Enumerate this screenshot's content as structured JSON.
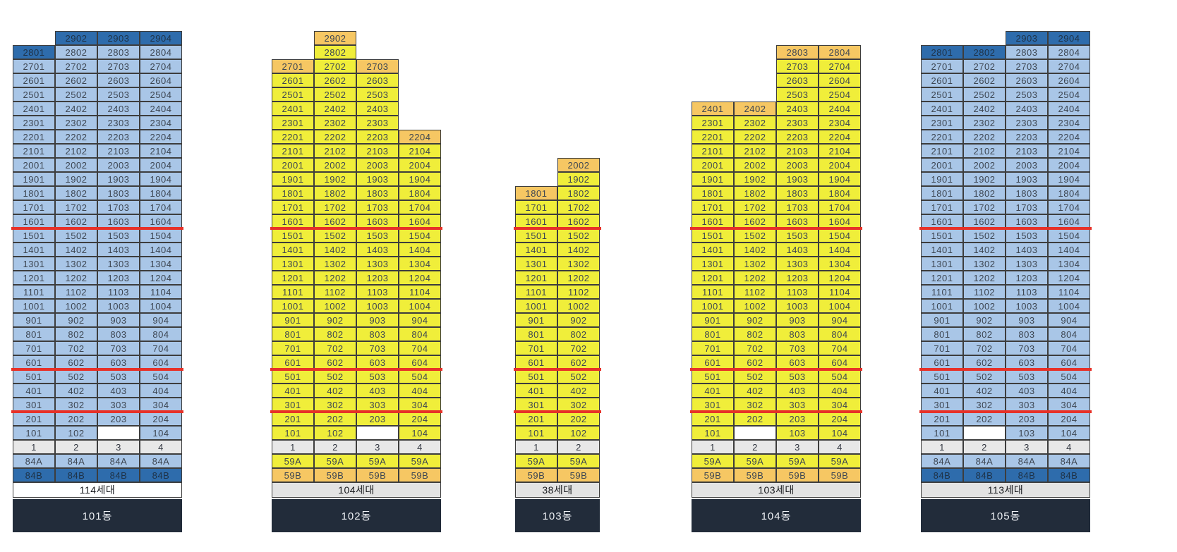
{
  "chart_title": "",
  "themes": {
    "blue": {
      "cell_bg": "#a9c6e7",
      "top_bg": "#2e6cac",
      "cell_text": "#3d4652",
      "top_text": "#1e3247"
    },
    "yellow": {
      "cell_bg": "#f0ee3a",
      "top_bg": "#f6c763",
      "cell_text": "#3d4652",
      "top_text": "#3d4652"
    }
  },
  "colors": {
    "divider_red": "#e73128",
    "cell_border": "#3d3d3d",
    "header_bg": "#e8e8e8",
    "footer_bg": "#222c3a",
    "footer_text": "#eef1f5",
    "blank_cell_bg": "#ffffff"
  },
  "buildings": [
    {
      "name": "101동",
      "households": "114세대",
      "households_bg": "#ffffff",
      "theme": "blue",
      "unit_types": [
        "84A",
        "84B"
      ],
      "red_lines_below_floor": [
        16,
        6,
        3
      ],
      "columns": [
        {
          "num": "1",
          "from": 1,
          "to": 28,
          "missing": []
        },
        {
          "num": "2",
          "from": 1,
          "to": 29,
          "missing": []
        },
        {
          "num": "3",
          "from": 1,
          "to": 29,
          "missing": [
            1
          ]
        },
        {
          "num": "4",
          "from": 1,
          "to": 29,
          "missing": []
        }
      ]
    },
    {
      "name": "102동",
      "households": "104세대",
      "households_bg": "#e3e3e3",
      "theme": "yellow",
      "unit_types": [
        "59A",
        "59B"
      ],
      "red_lines_below_floor": [
        16,
        6,
        3
      ],
      "columns": [
        {
          "num": "1",
          "from": 1,
          "to": 27,
          "missing": []
        },
        {
          "num": "2",
          "from": 1,
          "to": 29,
          "missing": []
        },
        {
          "num": "3",
          "from": 1,
          "to": 27,
          "missing": [
            1
          ]
        },
        {
          "num": "4",
          "from": 1,
          "to": 22,
          "missing": []
        }
      ]
    },
    {
      "name": "103동",
      "households": "38세대",
      "households_bg": "#e3e3e3",
      "theme": "yellow",
      "unit_types": [
        "59A",
        "59B"
      ],
      "red_lines_below_floor": [
        16,
        6,
        3
      ],
      "columns": [
        {
          "num": "1",
          "from": 1,
          "to": 18,
          "missing": []
        },
        {
          "num": "2",
          "from": 1,
          "to": 20,
          "missing": []
        }
      ]
    },
    {
      "name": "104동",
      "households": "103세대",
      "households_bg": "#e3e3e3",
      "theme": "yellow",
      "unit_types": [
        "59A",
        "59B"
      ],
      "red_lines_below_floor": [
        16,
        6,
        3
      ],
      "columns": [
        {
          "num": "1",
          "from": 1,
          "to": 24,
          "missing": []
        },
        {
          "num": "2",
          "from": 1,
          "to": 24,
          "missing": [
            1
          ]
        },
        {
          "num": "3",
          "from": 1,
          "to": 28,
          "missing": []
        },
        {
          "num": "4",
          "from": 1,
          "to": 28,
          "missing": []
        }
      ]
    },
    {
      "name": "105동",
      "households": "113세대",
      "households_bg": "#e3e3e3",
      "theme": "blue",
      "unit_types": [
        "84A",
        "84B"
      ],
      "red_lines_below_floor": [
        16,
        6,
        3
      ],
      "columns": [
        {
          "num": "1",
          "from": 1,
          "to": 28,
          "missing": []
        },
        {
          "num": "2",
          "from": 1,
          "to": 28,
          "missing": [
            1
          ]
        },
        {
          "num": "3",
          "from": 1,
          "to": 29,
          "missing": []
        },
        {
          "num": "4",
          "from": 1,
          "to": 29,
          "missing": []
        }
      ]
    }
  ]
}
